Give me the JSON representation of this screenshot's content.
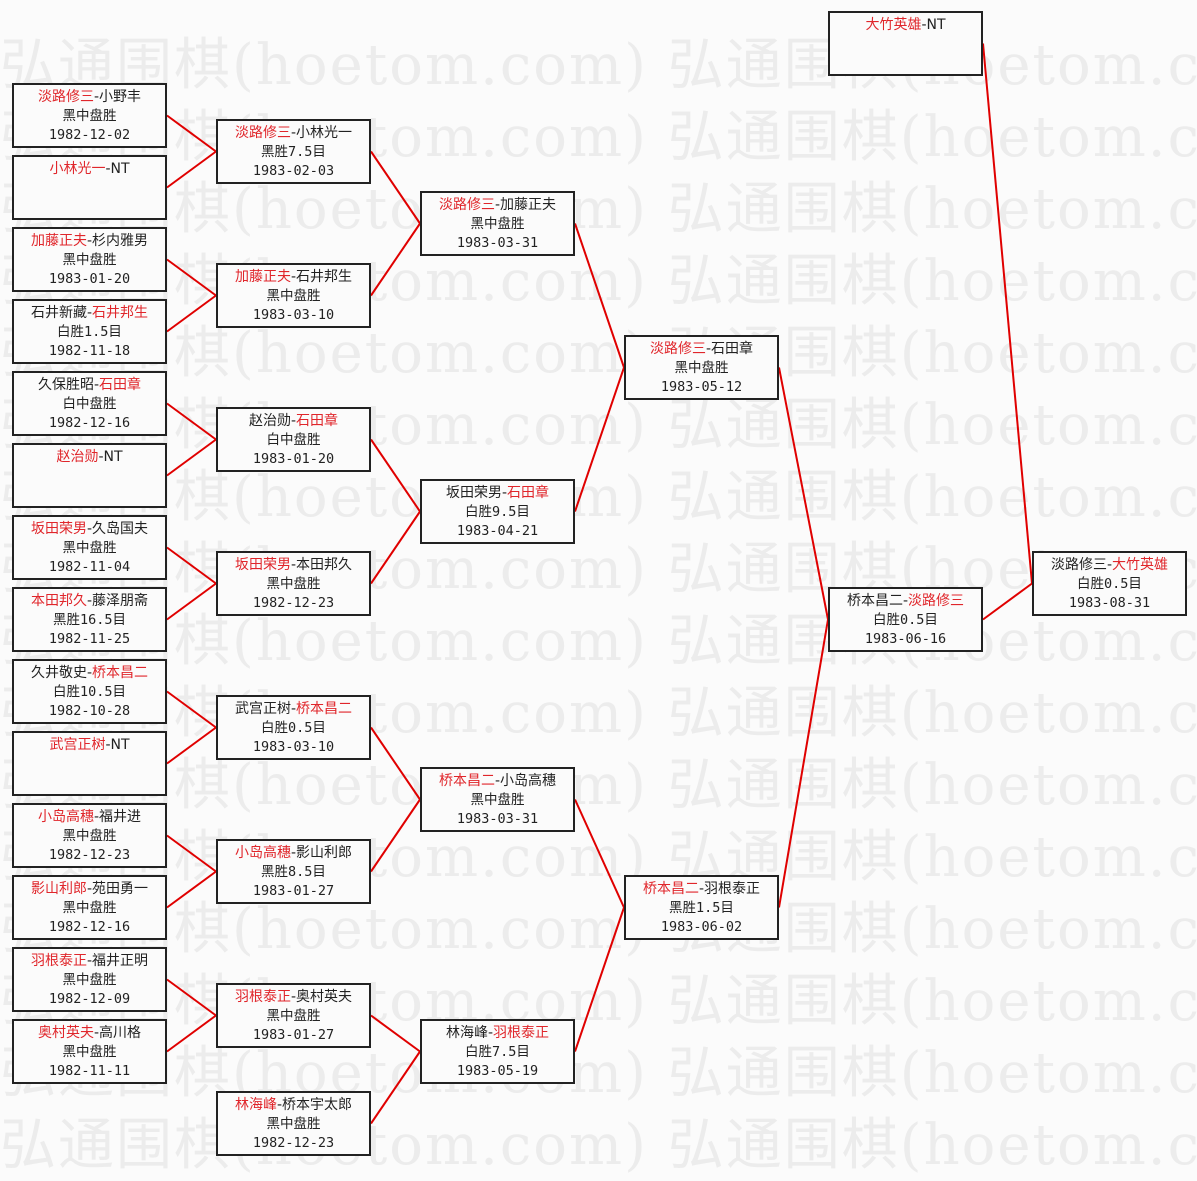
{
  "watermark": "弘通围棋(hoetom.com) 弘通围棋(hoetom.com)",
  "colors": {
    "winner": "#e0262b",
    "line": "#e00000",
    "border": "#222222",
    "text": "#222222"
  },
  "rounds": [
    [
      {
        "p1": "淡路修三",
        "p2": "小野丰",
        "winner": 1,
        "result": "黑中盘胜",
        "date": "1982-12-02"
      },
      {
        "p1": "小林光一",
        "p2": "NT",
        "winner": 1,
        "result": "",
        "date": ""
      },
      {
        "p1": "加藤正夫",
        "p2": "杉内雅男",
        "winner": 1,
        "result": "黑中盘胜",
        "date": "1983-01-20"
      },
      {
        "p1": "石井新藏",
        "p2": "石井邦生",
        "winner": 2,
        "result": "白胜1.5目",
        "date": "1982-11-18"
      },
      {
        "p1": "久保胜昭",
        "p2": "石田章",
        "winner": 2,
        "result": "白中盘胜",
        "date": "1982-12-16"
      },
      {
        "p1": "赵治勋",
        "p2": "NT",
        "winner": 1,
        "result": "",
        "date": ""
      },
      {
        "p1": "坂田荣男",
        "p2": "久岛国夫",
        "winner": 1,
        "result": "黑中盘胜",
        "date": "1982-11-04"
      },
      {
        "p1": "本田邦久",
        "p2": "藤泽朋斋",
        "winner": 1,
        "result": "黑胜16.5目",
        "date": "1982-11-25"
      },
      {
        "p1": "久井敬史",
        "p2": "桥本昌二",
        "winner": 2,
        "result": "白胜10.5目",
        "date": "1982-10-28"
      },
      {
        "p1": "武宫正树",
        "p2": "NT",
        "winner": 1,
        "result": "",
        "date": ""
      },
      {
        "p1": "小岛高穗",
        "p2": "福井进",
        "winner": 1,
        "result": "黑中盘胜",
        "date": "1982-12-23"
      },
      {
        "p1": "影山利郎",
        "p2": "苑田勇一",
        "winner": 1,
        "result": "黑中盘胜",
        "date": "1982-12-16"
      },
      {
        "p1": "羽根泰正",
        "p2": "福井正明",
        "winner": 1,
        "result": "黑中盘胜",
        "date": "1982-12-09"
      },
      {
        "p1": "奥村英夫",
        "p2": "高川格",
        "winner": 1,
        "result": "黑中盘胜",
        "date": "1982-11-11"
      }
    ],
    [
      {
        "p1": "淡路修三",
        "p2": "小林光一",
        "winner": 1,
        "result": "黑胜7.5目",
        "date": "1983-02-03"
      },
      {
        "p1": "加藤正夫",
        "p2": "石井邦生",
        "winner": 1,
        "result": "黑中盘胜",
        "date": "1983-03-10"
      },
      {
        "p1": "赵治勋",
        "p2": "石田章",
        "winner": 2,
        "result": "白中盘胜",
        "date": "1983-01-20"
      },
      {
        "p1": "坂田荣男",
        "p2": "本田邦久",
        "winner": 1,
        "result": "黑中盘胜",
        "date": "1982-12-23"
      },
      {
        "p1": "武宫正树",
        "p2": "桥本昌二",
        "winner": 2,
        "result": "白胜0.5目",
        "date": "1983-03-10"
      },
      {
        "p1": "小岛高穗",
        "p2": "影山利郎",
        "winner": 1,
        "result": "黑胜8.5目",
        "date": "1983-01-27"
      },
      {
        "p1": "羽根泰正",
        "p2": "奥村英夫",
        "winner": 1,
        "result": "黑中盘胜",
        "date": "1983-01-27"
      },
      {
        "p1": "林海峰",
        "p2": "桥本宇太郎",
        "winner": 1,
        "result": "黑中盘胜",
        "date": "1982-12-23"
      }
    ],
    [
      {
        "p1": "淡路修三",
        "p2": "加藤正夫",
        "winner": 1,
        "result": "黑中盘胜",
        "date": "1983-03-31"
      },
      {
        "p1": "坂田荣男",
        "p2": "石田章",
        "winner": 2,
        "result": "白胜9.5目",
        "date": "1983-04-21"
      },
      {
        "p1": "桥本昌二",
        "p2": "小岛高穗",
        "winner": 1,
        "result": "黑中盘胜",
        "date": "1983-03-31"
      },
      {
        "p1": "林海峰",
        "p2": "羽根泰正",
        "winner": 2,
        "result": "白胜7.5目",
        "date": "1983-05-19"
      }
    ],
    [
      {
        "p1": "淡路修三",
        "p2": "石田章",
        "winner": 1,
        "result": "黑中盘胜",
        "date": "1983-05-12"
      },
      {
        "p1": "桥本昌二",
        "p2": "羽根泰正",
        "winner": 1,
        "result": "黑胜1.5目",
        "date": "1983-06-02"
      }
    ],
    [
      {
        "p1": "桥本昌二",
        "p2": "淡路修三",
        "winner": 2,
        "result": "白胜0.5目",
        "date": "1983-06-16"
      },
      {
        "p1": "大竹英雄",
        "p2": "NT",
        "winner": 1,
        "result": "",
        "date": ""
      }
    ],
    [
      {
        "p1": "淡路修三",
        "p2": "大竹英雄",
        "winner": 2,
        "result": "白胜0.5目",
        "date": "1983-08-31"
      }
    ]
  ]
}
